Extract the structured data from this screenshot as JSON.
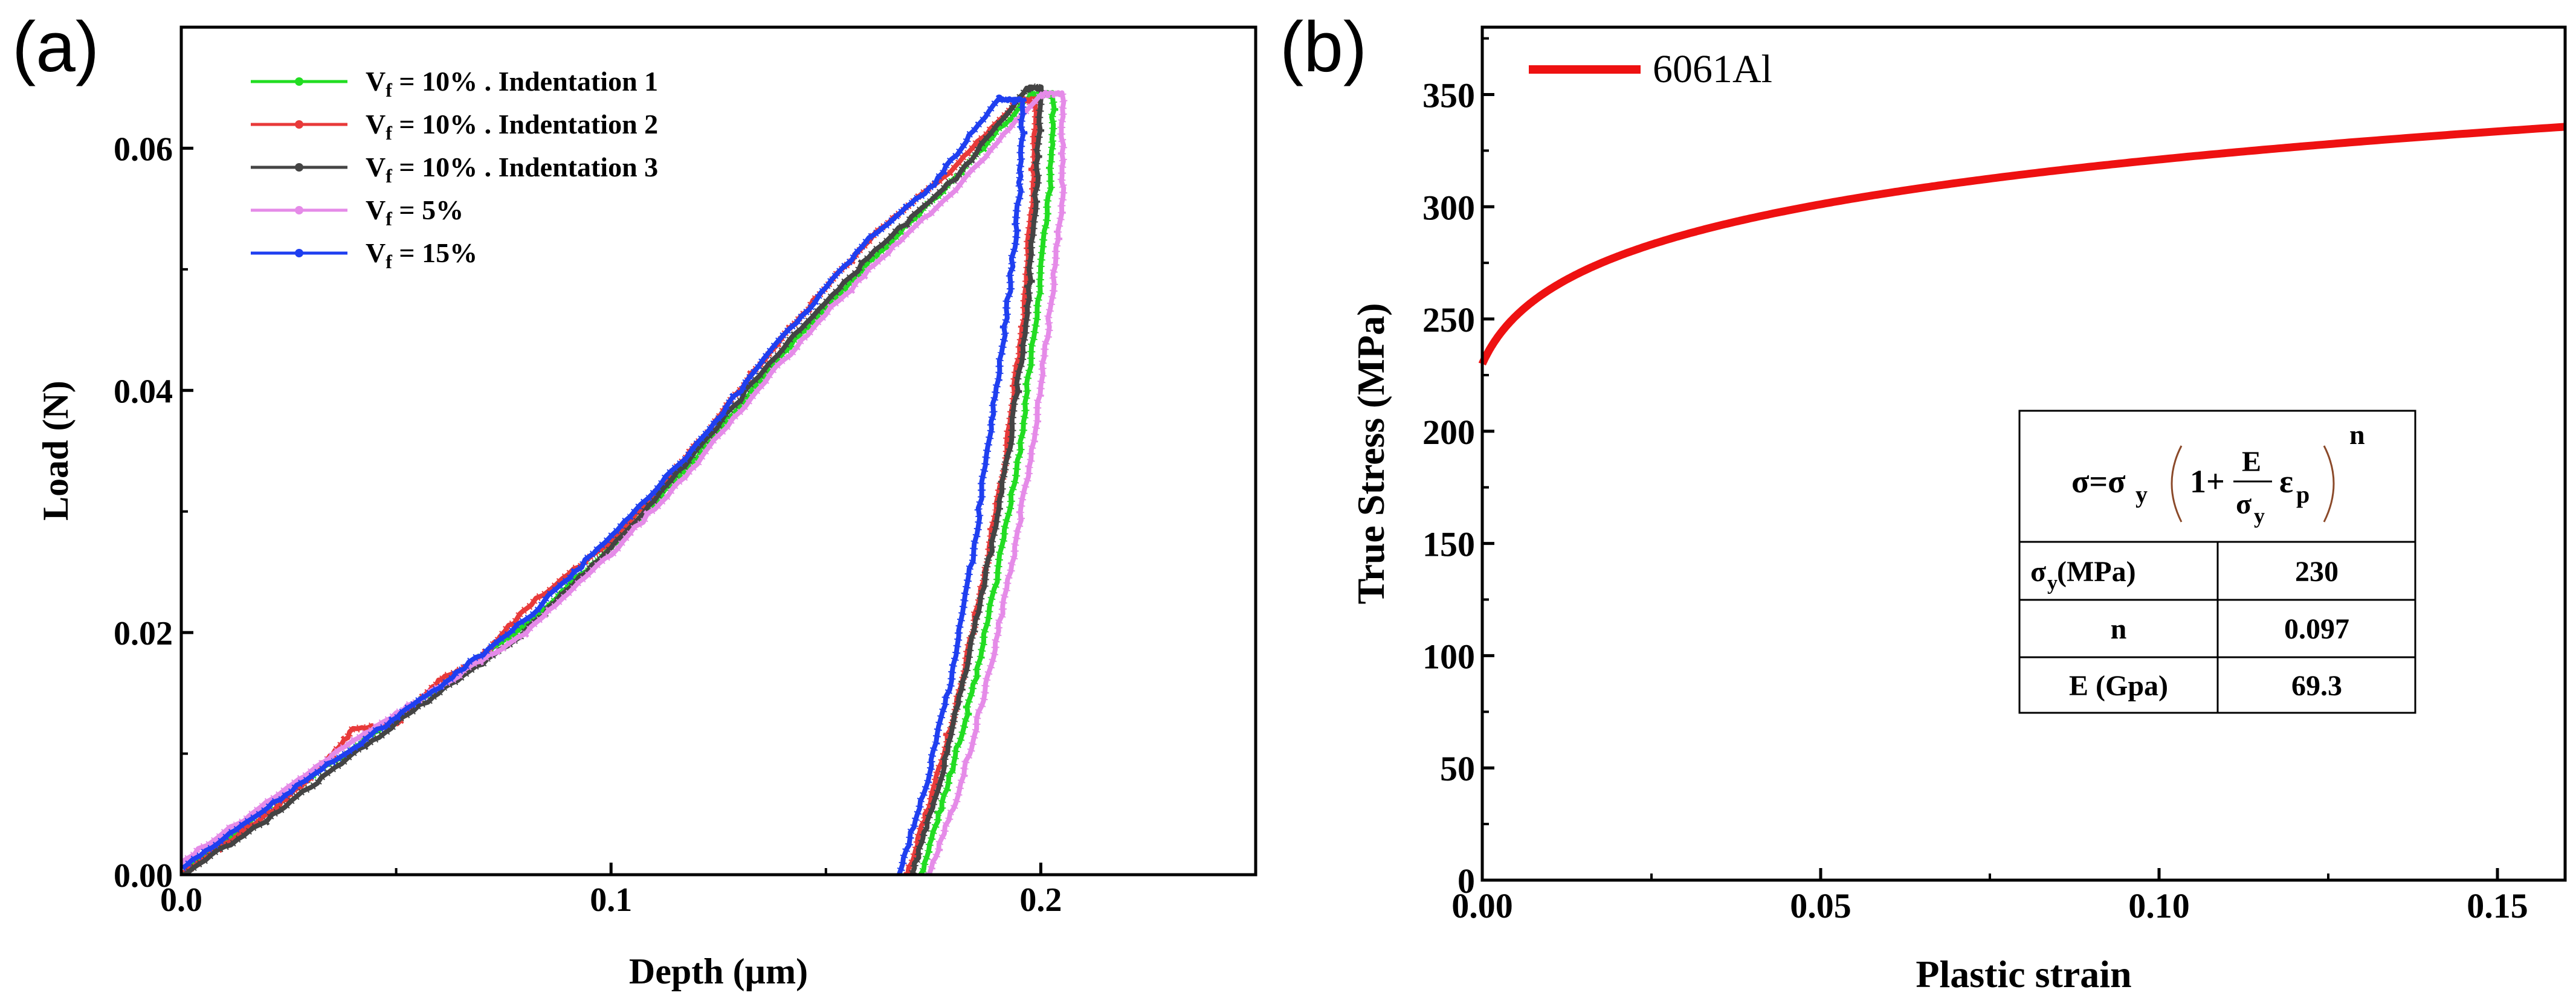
{
  "chart_data": [
    {
      "panel_label": "(a)",
      "type": "line",
      "title": "",
      "xlabel": "Depth (µm)",
      "ylabel": "Load (N)",
      "xlim": [
        0,
        0.25
      ],
      "ylim": [
        0,
        0.07
      ],
      "xticks": [
        0.0,
        0.1,
        0.2
      ],
      "xtick_labels": [
        "0.0",
        "0.1",
        "0.2"
      ],
      "yticks": [
        0.0,
        0.02,
        0.04,
        0.06
      ],
      "ytick_labels": [
        "0.00",
        "0.02",
        "0.04",
        "0.06"
      ],
      "legend_position": "top-left",
      "series": [
        {
          "name": "Vf = 10% . Indentation 1",
          "legend_main": "V",
          "legend_sub": "f",
          "legend_rest": " = 10% . Indentation 1",
          "color": "#22dd22",
          "marker": "triangle-down",
          "x": [
            0.0,
            0.02,
            0.04,
            0.06,
            0.08,
            0.1,
            0.12,
            0.14,
            0.16,
            0.18,
            0.198,
            0.203,
            0.202,
            0.199,
            0.195,
            0.19,
            0.184,
            0.178,
            0.172
          ],
          "y": [
            0.0,
            0.0055,
            0.0105,
            0.0155,
            0.0205,
            0.027,
            0.0345,
            0.043,
            0.0505,
            0.0575,
            0.0645,
            0.0645,
            0.056,
            0.046,
            0.035,
            0.025,
            0.015,
            0.007,
            0.0
          ]
        },
        {
          "name": "Vf = 10% . Indentation 2",
          "legend_main": "V",
          "legend_sub": "f",
          "legend_rest": " = 10% . Indentation 2",
          "color": "#e83a3a",
          "marker": "diamond",
          "x": [
            0.0,
            0.02,
            0.03,
            0.04,
            0.05,
            0.06,
            0.07,
            0.08,
            0.1,
            0.12,
            0.14,
            0.16,
            0.18,
            0.195,
            0.199,
            0.198,
            0.196,
            0.192,
            0.187,
            0.181,
            0.175,
            0.169
          ],
          "y": [
            0.0,
            0.005,
            0.008,
            0.012,
            0.0125,
            0.016,
            0.018,
            0.022,
            0.0275,
            0.0355,
            0.0445,
            0.0525,
            0.0585,
            0.064,
            0.064,
            0.056,
            0.046,
            0.035,
            0.025,
            0.015,
            0.007,
            0.0
          ]
        },
        {
          "name": "Vf = 10% . Indentation 3",
          "legend_main": "V",
          "legend_sub": "f",
          "legend_rest": " = 10% . Indentation 3",
          "color": "#444444",
          "marker": "square",
          "x": [
            0.0,
            0.02,
            0.04,
            0.06,
            0.08,
            0.1,
            0.12,
            0.14,
            0.16,
            0.18,
            0.197,
            0.2,
            0.199,
            0.197,
            0.193,
            0.188,
            0.182,
            0.176,
            0.17
          ],
          "y": [
            0.0,
            0.0045,
            0.01,
            0.015,
            0.02,
            0.027,
            0.035,
            0.0435,
            0.051,
            0.0575,
            0.065,
            0.065,
            0.057,
            0.047,
            0.036,
            0.026,
            0.016,
            0.007,
            0.0
          ]
        },
        {
          "name": "Vf = 5%",
          "legend_main": "V",
          "legend_sub": "f",
          "legend_rest": " = 5%",
          "color": "#e58be8",
          "marker": "triangle-up",
          "x": [
            0.0,
            0.02,
            0.04,
            0.06,
            0.08,
            0.1,
            0.12,
            0.14,
            0.16,
            0.18,
            0.2,
            0.205,
            0.205,
            0.202,
            0.198,
            0.193,
            0.187,
            0.181,
            0.174
          ],
          "y": [
            0.001,
            0.006,
            0.011,
            0.0155,
            0.02,
            0.0265,
            0.034,
            0.0425,
            0.05,
            0.0565,
            0.0645,
            0.0645,
            0.056,
            0.046,
            0.035,
            0.025,
            0.015,
            0.007,
            0.0
          ]
        },
        {
          "name": "Vf = 15%",
          "legend_main": "V",
          "legend_sub": "f",
          "legend_rest": " = 15%",
          "color": "#1f3ff0",
          "marker": "circle",
          "x": [
            0.0,
            0.02,
            0.04,
            0.06,
            0.08,
            0.1,
            0.12,
            0.14,
            0.16,
            0.175,
            0.19,
            0.196,
            0.195,
            0.192,
            0.188,
            0.184,
            0.179,
            0.173,
            0.167
          ],
          "y": [
            0.0005,
            0.0055,
            0.0105,
            0.0155,
            0.021,
            0.028,
            0.0355,
            0.0445,
            0.0525,
            0.057,
            0.064,
            0.064,
            0.056,
            0.046,
            0.036,
            0.026,
            0.016,
            0.007,
            0.0
          ]
        }
      ]
    },
    {
      "panel_label": "(b)",
      "type": "line",
      "title": "",
      "xlabel": "Plastic strain",
      "ylabel": "True Stress (MPa)",
      "xlim": [
        0,
        0.16
      ],
      "ylim": [
        0,
        380
      ],
      "xticks": [
        0.0,
        0.05,
        0.1,
        0.15
      ],
      "xtick_labels": [
        "0.00",
        "0.05",
        "0.10",
        "0.15"
      ],
      "yticks": [
        0,
        50,
        100,
        150,
        200,
        250,
        300,
        350
      ],
      "ytick_labels": [
        "0",
        "50",
        "100",
        "150",
        "200",
        "250",
        "300",
        "350"
      ],
      "legend_position": "top-left",
      "series": [
        {
          "name": "6061Al",
          "color": "#ee1111",
          "formula": "sigma = sigma_y * (1 + E/sigma_y * eps_p)^n",
          "params": {
            "sigma_y": 230,
            "n": 0.097,
            "E": 69300
          }
        }
      ],
      "annotation_table": {
        "formula_text": {
          "sigma_eq": "σ=σ",
          "sub_y": "y",
          "one_plus": "1+",
          "frac_num": "E",
          "frac_den": "σ",
          "eps": "ε",
          "sub_p": "p",
          "exp_n": "n"
        },
        "rows": [
          {
            "label_main": "σ",
            "label_sub": "y",
            "label_rest": " (MPa)",
            "value": "230"
          },
          {
            "label_main": "n",
            "label_sub": "",
            "label_rest": "",
            "value": "0.097"
          },
          {
            "label_main": "E (Gpa)",
            "label_sub": "",
            "label_rest": "",
            "value": "69.3"
          }
        ]
      }
    }
  ]
}
